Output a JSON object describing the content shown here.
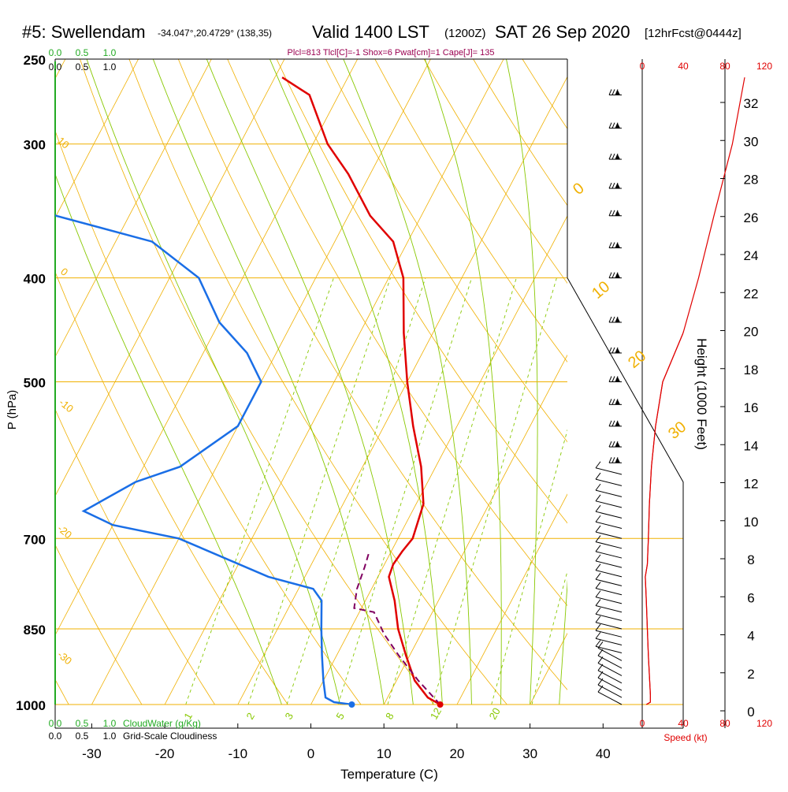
{
  "header": {
    "station": "#5: Swellendam",
    "coords": "-34.047°,20.4729° (138,35)",
    "valid": "Valid 1400 LST",
    "utc": "(1200Z)",
    "date": "SAT 26 Sep 2020",
    "fcst": "[12hrFcst@0444z]"
  },
  "indices": "Plcl=813 Tlcl[C]=-1 Shox=6 Pwat[cm]=1 Cape[J]= 135",
  "colors": {
    "isotherm": "#f0b000",
    "isobar": "#f0b000",
    "dry_adiabat": "#f0b000",
    "moist_adiabat": "#88c800",
    "mixing_ratio": "#88c800",
    "temperature": "#e00000",
    "dewpoint": "#1a6ee6",
    "parcel": "#800060",
    "speed": "#e00000",
    "cloud": "#22aa22"
  },
  "chart_data": {
    "type": "line",
    "xlabel": "Temperature (C)",
    "ylabel": "P (hPa)",
    "right_ylabel": "Height (1000 Feet)",
    "x_ticks": [
      -30,
      -20,
      -10,
      0,
      10,
      20,
      30,
      40
    ],
    "p_ticks": [
      250,
      300,
      400,
      500,
      700,
      850,
      1000
    ],
    "height_ticks": [
      0,
      2,
      4,
      6,
      8,
      10,
      12,
      14,
      16,
      18,
      20,
      22,
      24,
      26,
      28,
      30,
      32
    ],
    "speed_ticks": [
      "0",
      "40",
      "80",
      "120"
    ],
    "speed_label": "Speed (kt)",
    "cloud_ticks": [
      "0.0",
      "0.5",
      "1.0"
    ],
    "cloudwater_label": "CloudWater (g/Kg)",
    "cloudiness_label": "Grid-Scale Cloudiness",
    "isotherm_labels": [
      "0",
      "10",
      "20",
      "30"
    ],
    "dry_adiabat_labels": [
      "10",
      "0",
      "-10",
      "-20",
      "-30"
    ],
    "mixing_ratio_labels": [
      "1",
      "2",
      "3",
      "5",
      "8",
      "12",
      "20"
    ],
    "series": [
      {
        "name": "temperature",
        "points": [
          [
            17.7,
            1000
          ],
          [
            15.5,
            985
          ],
          [
            12.5,
            950
          ],
          [
            9.5,
            900
          ],
          [
            6.5,
            850
          ],
          [
            4.0,
            800
          ],
          [
            1.5,
            760
          ],
          [
            1.2,
            740
          ],
          [
            1.5,
            720
          ],
          [
            2.0,
            700
          ],
          [
            1.0,
            650
          ],
          [
            -2.0,
            600
          ],
          [
            -6.0,
            550
          ],
          [
            -10.0,
            500
          ],
          [
            -14.0,
            450
          ],
          [
            -18.0,
            400
          ],
          [
            -22.0,
            370
          ],
          [
            -27.0,
            350
          ],
          [
            -33.0,
            320
          ],
          [
            -38.0,
            300
          ],
          [
            -44.0,
            270
          ],
          [
            -49.0,
            260
          ]
        ]
      },
      {
        "name": "dewpoint",
        "points": [
          [
            5.6,
            1000
          ],
          [
            3.0,
            995
          ],
          [
            1.5,
            985
          ],
          [
            0.0,
            950
          ],
          [
            -2.0,
            900
          ],
          [
            -4.0,
            850
          ],
          [
            -6.0,
            800
          ],
          [
            -8.0,
            780
          ],
          [
            -15.0,
            760
          ],
          [
            -30.0,
            700
          ],
          [
            -40.0,
            680
          ],
          [
            -45.0,
            660
          ],
          [
            -40.0,
            620
          ],
          [
            -35.0,
            600
          ],
          [
            -30.0,
            550
          ],
          [
            -30.0,
            500
          ],
          [
            -34.0,
            470
          ],
          [
            -40.0,
            440
          ],
          [
            -46.0,
            400
          ],
          [
            -55.0,
            370
          ],
          [
            -70.0,
            350
          ],
          [
            -80.0,
            330
          ]
        ]
      },
      {
        "name": "parcel",
        "points": [
          [
            17.7,
            1000
          ],
          [
            13.0,
            950
          ],
          [
            8.5,
            900
          ],
          [
            5.0,
            860
          ],
          [
            2.0,
            820
          ],
          [
            -1.0,
            813
          ],
          [
            -2.0,
            780
          ],
          [
            -2.5,
            745
          ],
          [
            -3.0,
            720
          ]
        ]
      },
      {
        "name": "speed",
        "points": [
          [
            4,
            1000
          ],
          [
            8,
            995
          ],
          [
            8,
            980
          ],
          [
            6,
            900
          ],
          [
            5,
            850
          ],
          [
            4,
            800
          ],
          [
            3,
            760
          ],
          [
            5,
            740
          ],
          [
            6,
            700
          ],
          [
            7,
            650
          ],
          [
            9,
            600
          ],
          [
            13,
            550
          ],
          [
            20,
            500
          ],
          [
            40,
            450
          ],
          [
            55,
            400
          ],
          [
            70,
            350
          ],
          [
            88,
            300
          ],
          [
            100,
            260
          ]
        ]
      }
    ],
    "surface_temperature": 17.7,
    "surface_dewpoint": 5.6,
    "wind_barb_pressures": [
      1000,
      985,
      970,
      955,
      940,
      925,
      910,
      895,
      880,
      865,
      850,
      835,
      820,
      805,
      790,
      775,
      760,
      745,
      730,
      715,
      700,
      685,
      670,
      655,
      640,
      625,
      610,
      595,
      575,
      550,
      525,
      500,
      470,
      440,
      400,
      375,
      350,
      330,
      310,
      290,
      270
    ]
  }
}
